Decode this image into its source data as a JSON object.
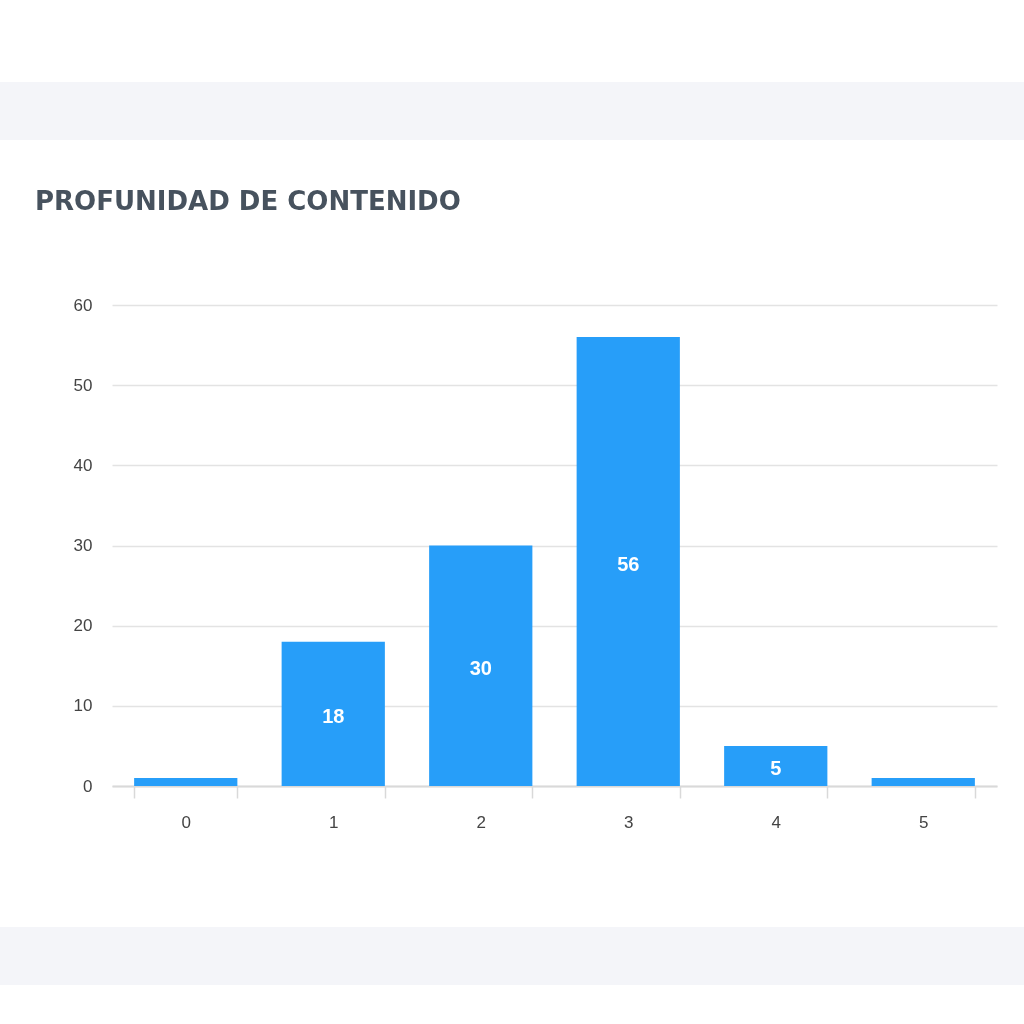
{
  "chart_data": {
    "type": "bar",
    "title": "PROFUNIDAD DE CONTENIDO",
    "categories": [
      "0",
      "1",
      "2",
      "3",
      "4",
      "5"
    ],
    "values": [
      1,
      18,
      30,
      56,
      5,
      1
    ],
    "value_labels": [
      null,
      "18",
      "30",
      "56",
      "5",
      null
    ],
    "color": "#279ef9",
    "ylim": [
      0,
      60
    ],
    "yticks": [
      0,
      10,
      20,
      30,
      40,
      50,
      60
    ],
    "grid": "y"
  }
}
